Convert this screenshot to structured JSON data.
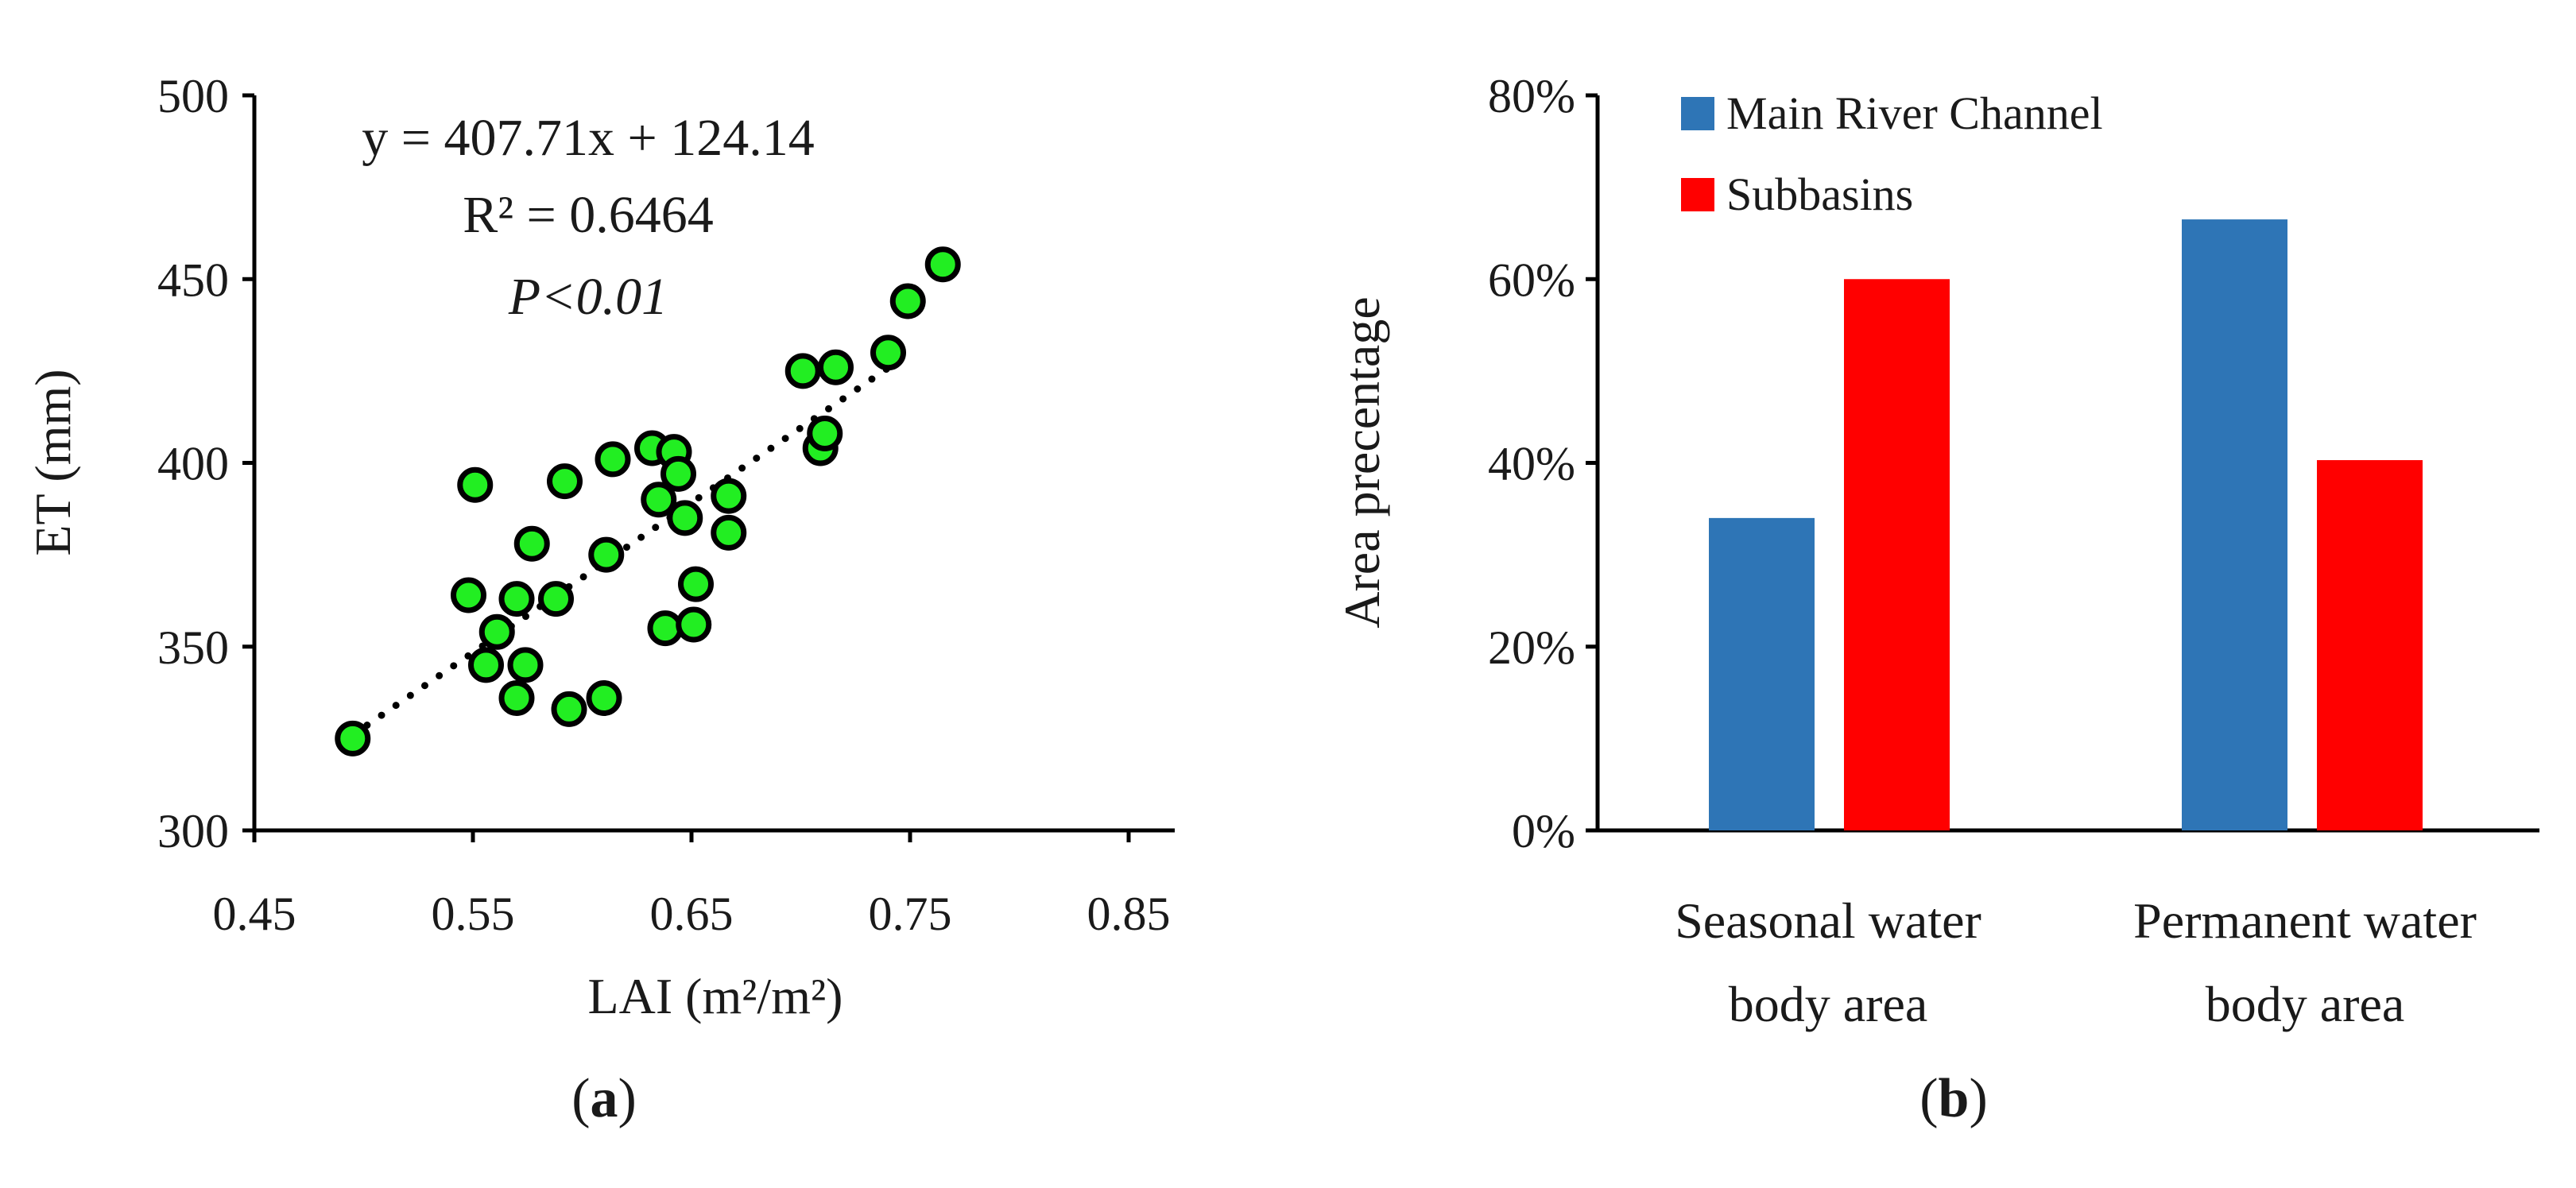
{
  "chart_data": [
    {
      "type": "scatter",
      "panel_label_open": "(",
      "panel_label_letter": "a",
      "panel_label_close": ")",
      "xlabel": "LAI (m²/m²)",
      "ylabel": "ET  (mm)",
      "xlim": [
        0.45,
        0.85
      ],
      "ylim": [
        300,
        500
      ],
      "x_ticks": [
        "0.45",
        "0.55",
        "0.65",
        "0.75",
        "0.85"
      ],
      "y_ticks": [
        "300",
        "350",
        "400",
        "450",
        "500"
      ],
      "equation": "y = 407.71x + 124.14",
      "r_squared": "R² = 0.6464",
      "p_value": "P<0.01",
      "trendline": {
        "slope": 407.71,
        "intercept": 124.14,
        "x_range": [
          0.495,
          0.752
        ],
        "style": "dotted"
      },
      "marker_color": "#22ee22",
      "points": [
        {
          "x": 0.495,
          "y": 325
        },
        {
          "x": 0.548,
          "y": 364
        },
        {
          "x": 0.551,
          "y": 394
        },
        {
          "x": 0.556,
          "y": 345
        },
        {
          "x": 0.561,
          "y": 354
        },
        {
          "x": 0.57,
          "y": 363
        },
        {
          "x": 0.57,
          "y": 336
        },
        {
          "x": 0.574,
          "y": 345
        },
        {
          "x": 0.577,
          "y": 378
        },
        {
          "x": 0.588,
          "y": 363
        },
        {
          "x": 0.592,
          "y": 395
        },
        {
          "x": 0.594,
          "y": 333
        },
        {
          "x": 0.61,
          "y": 336
        },
        {
          "x": 0.611,
          "y": 375
        },
        {
          "x": 0.614,
          "y": 401
        },
        {
          "x": 0.632,
          "y": 404
        },
        {
          "x": 0.635,
          "y": 390
        },
        {
          "x": 0.638,
          "y": 355
        },
        {
          "x": 0.642,
          "y": 403
        },
        {
          "x": 0.644,
          "y": 397
        },
        {
          "x": 0.647,
          "y": 385
        },
        {
          "x": 0.651,
          "y": 356
        },
        {
          "x": 0.652,
          "y": 367
        },
        {
          "x": 0.667,
          "y": 391
        },
        {
          "x": 0.667,
          "y": 381
        },
        {
          "x": 0.701,
          "y": 425
        },
        {
          "x": 0.709,
          "y": 404
        },
        {
          "x": 0.711,
          "y": 408
        },
        {
          "x": 0.716,
          "y": 426
        },
        {
          "x": 0.74,
          "y": 430
        },
        {
          "x": 0.749,
          "y": 444
        },
        {
          "x": 0.765,
          "y": 454
        }
      ]
    },
    {
      "type": "bar",
      "panel_label_open": "(",
      "panel_label_letter": "b",
      "panel_label_close": ")",
      "ylabel": "Area precentage",
      "ylim": [
        0,
        80
      ],
      "y_ticks": [
        "0%",
        "20%",
        "40%",
        "60%",
        "80%"
      ],
      "categories": [
        {
          "line1": "Seasonal water",
          "line2": "body area"
        },
        {
          "line1": "Permanent water",
          "line2": "body area"
        }
      ],
      "series": [
        {
          "name": "Main River Channel",
          "color": "#2e75b6",
          "values": [
            34,
            66.5
          ]
        },
        {
          "name": "Subbasins",
          "color": "#ff0000",
          "values": [
            60,
            40.3
          ]
        }
      ],
      "legend_position": "top-left"
    }
  ]
}
